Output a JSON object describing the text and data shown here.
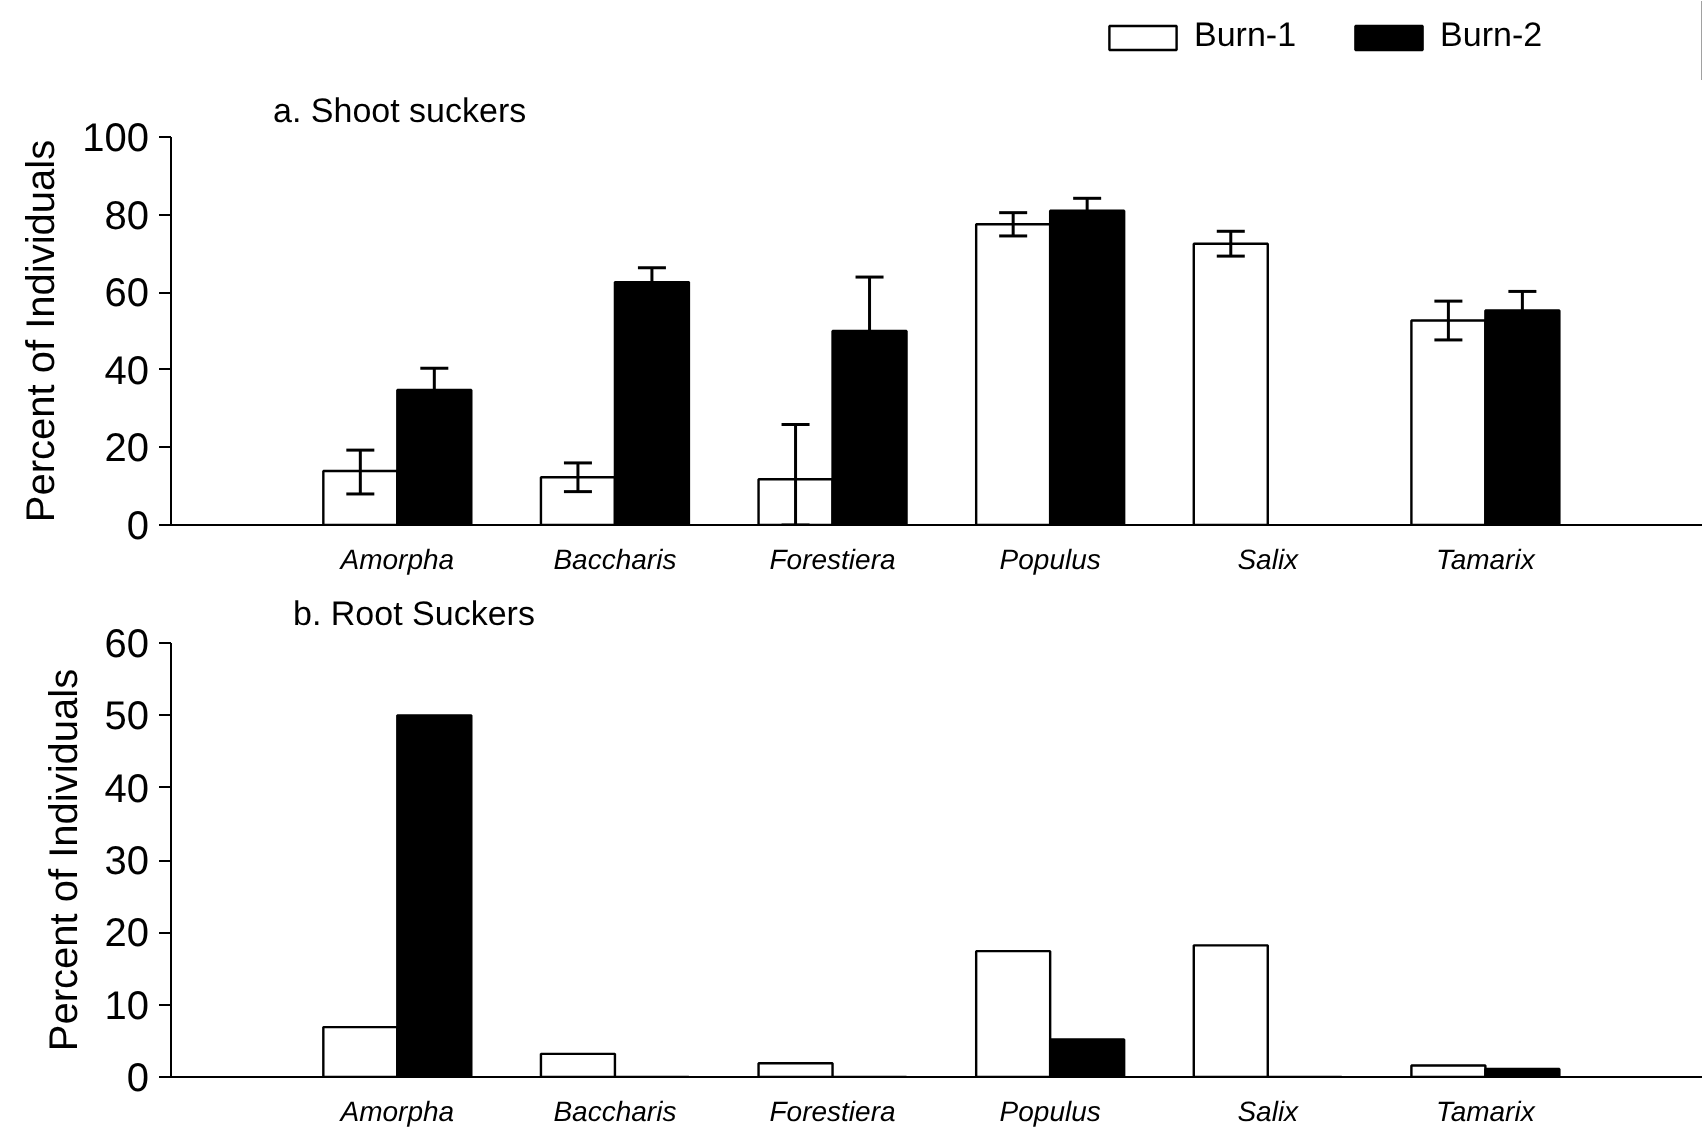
{
  "chart_data": [
    {
      "type": "bar",
      "title": "a.  Shoot suckers",
      "ylabel": "Percent of Individuals",
      "categories": [
        "Amorpha",
        "Baccharis",
        "Forestiera",
        "Populus",
        "Salix",
        "Tamarix"
      ],
      "series": [
        {
          "name": "Burn-1",
          "color": "#ffffff",
          "values": [
            13.9,
            12.3,
            11.8,
            77.5,
            72.5,
            52.7
          ],
          "errors": [
            [
              8,
              19.3
            ],
            3.7,
            [
              0,
              25.9
            ],
            3,
            3.2,
            5
          ]
        },
        {
          "name": "Burn-2",
          "color": "#000000",
          "values": [
            34.8,
            62.6,
            50,
            81,
            null,
            55.3
          ],
          "errors": [
            5.6,
            3.7,
            13.9,
            3.2,
            null,
            4.9
          ]
        }
      ],
      "ylim": [
        0,
        100
      ],
      "yticks": [
        0,
        20,
        40,
        60,
        80,
        100
      ],
      "grid": false,
      "legend": "top right"
    },
    {
      "type": "bar",
      "title": "b.  Root Suckers",
      "ylabel": "Percent of Individuals",
      "categories": [
        "Amorpha",
        "Baccharis",
        "Forestiera",
        "Populus",
        "Salix",
        "Tamarix"
      ],
      "series": [
        {
          "color": "#ffffff",
          "values": [
            6.9,
            3.2,
            1.9,
            17.4,
            18.2,
            1.6
          ]
        },
        {
          "color": "#000000",
          "values": [
            50,
            0,
            0,
            5.2,
            0,
            1.1
          ]
        }
      ],
      "ylim": [
        0,
        60
      ],
      "yticks": [
        0,
        10,
        20,
        30,
        40,
        50,
        60
      ],
      "grid": false
    }
  ]
}
